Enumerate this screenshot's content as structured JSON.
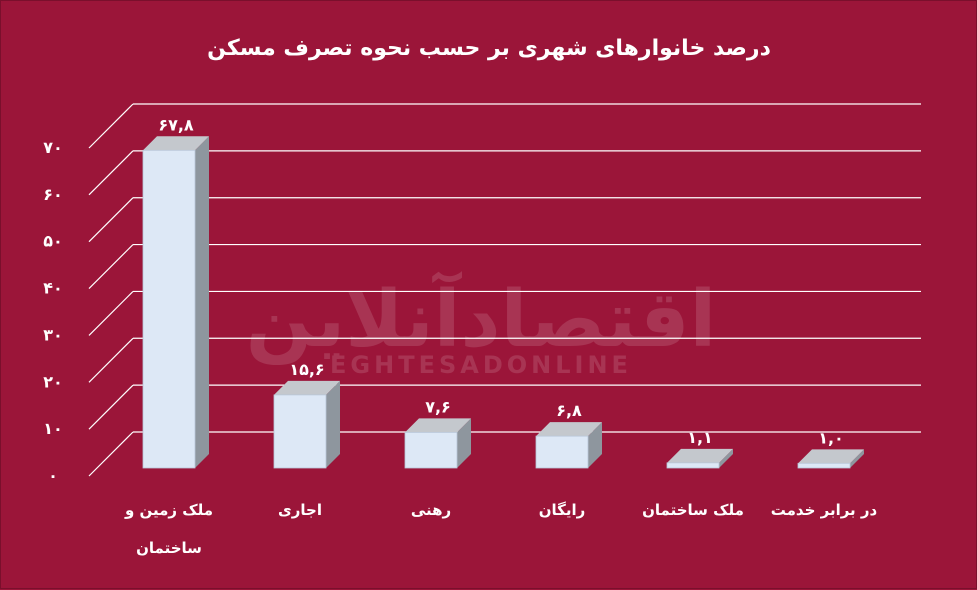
{
  "chart_data": {
    "type": "bar",
    "title": "درصد خانوارهای شهری بر حسب نحوه تصرف مسکن",
    "categories": [
      [
        "ملک زمین و",
        "ساختمان"
      ],
      [
        "اجاری"
      ],
      [
        "رهنی"
      ],
      [
        "رایگان"
      ],
      [
        "ملک ساختمان"
      ],
      [
        "در برابر خدمت"
      ]
    ],
    "values": [
      67.8,
      15.6,
      7.6,
      6.8,
      1.1,
      1.0
    ],
    "value_labels": [
      "۶۷,۸",
      "۱۵,۶",
      "۷,۶",
      "۶,۸",
      "۱,۱",
      "۱,۰"
    ],
    "ylim": [
      0,
      70
    ],
    "yticks": [
      0,
      10,
      20,
      30,
      40,
      50,
      60,
      70
    ],
    "ytick_labels": [
      "۰",
      "۱۰",
      "۲۰",
      "۳۰",
      "۴۰",
      "۵۰",
      "۶۰",
      "۷۰"
    ],
    "xlabel": "",
    "ylabel": "",
    "grid": true,
    "legend": "none",
    "colors": {
      "background": "#9b1539",
      "bar_front": "#dde8f6",
      "bar_top": "#c4c8cd",
      "bar_side": "#8e969e",
      "grid": "#ffffff",
      "text": "#ffffff"
    }
  },
  "watermark": {
    "main": "اقتصادآنلاین",
    "sub": "EGHTESADONLINE"
  }
}
